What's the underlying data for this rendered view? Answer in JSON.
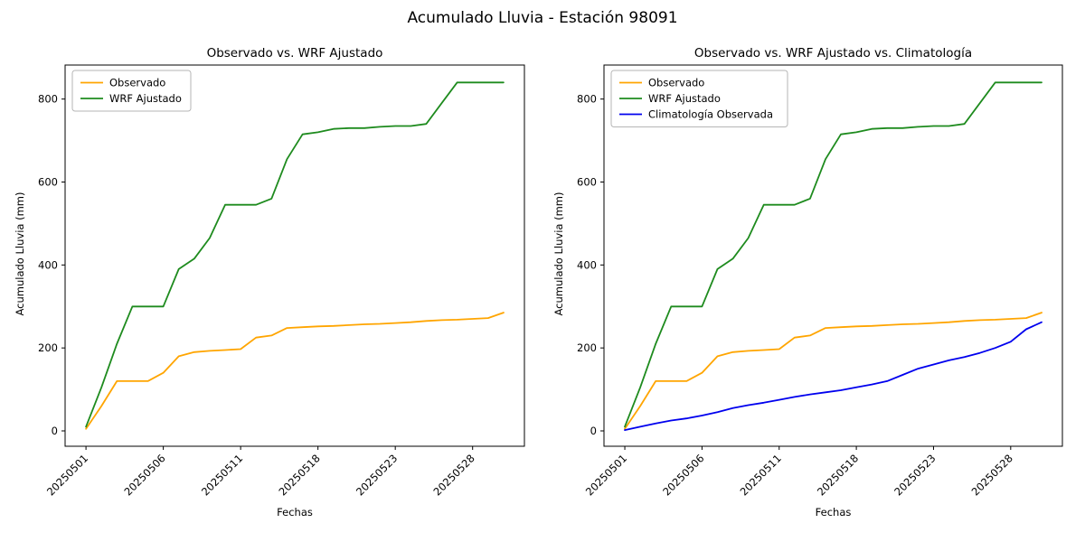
{
  "figure": {
    "title": "Acumulado Lluvia - Estación 98091"
  },
  "chart_data": [
    {
      "type": "line",
      "title": "Observado vs. WRF Ajustado",
      "xlabel": "Fechas",
      "ylabel": "Acumulado Lluvia (mm)",
      "ylim": [
        -37,
        882
      ],
      "yticks": [
        0,
        200,
        400,
        600,
        800
      ],
      "legend_position": "upper-left",
      "grid": false,
      "x": [
        "20250501",
        "20250502",
        "20250503",
        "20250504",
        "20250505",
        "20250506",
        "20250507",
        "20250508",
        "20250509",
        "20250510",
        "20250511",
        "20250512",
        "20250513",
        "20250515",
        "20250516",
        "20250518",
        "20250519",
        "20250520",
        "20250521",
        "20250522",
        "20250523",
        "20250524",
        "20250525",
        "20250526",
        "20250527",
        "20250528",
        "20250529",
        "20250530"
      ],
      "xtick_indices": [
        0,
        5,
        10,
        15,
        20,
        25
      ],
      "series": [
        {
          "name": "Observado",
          "color": "#FFA500",
          "values": [
            5,
            60,
            120,
            120,
            120,
            140,
            180,
            190,
            193,
            195,
            197,
            225,
            230,
            248,
            250,
            252,
            253,
            255,
            257,
            258,
            260,
            262,
            265,
            267,
            268,
            270,
            272,
            285
          ]
        },
        {
          "name": "WRF Ajustado",
          "color": "#1E8B1E",
          "values": [
            10,
            105,
            210,
            300,
            300,
            300,
            390,
            415,
            465,
            545,
            545,
            545,
            560,
            655,
            715,
            720,
            728,
            730,
            730,
            733,
            735,
            735,
            740,
            790,
            840,
            840,
            840,
            840
          ]
        }
      ]
    },
    {
      "type": "line",
      "title": "Observado vs. WRF Ajustado vs. Climatología",
      "xlabel": "Fechas",
      "ylabel": "Acumulado Lluvia (mm)",
      "ylim": [
        -37,
        882
      ],
      "yticks": [
        0,
        200,
        400,
        600,
        800
      ],
      "legend_position": "upper-left",
      "grid": false,
      "x": [
        "20250501",
        "20250502",
        "20250503",
        "20250504",
        "20250505",
        "20250506",
        "20250507",
        "20250508",
        "20250509",
        "20250510",
        "20250511",
        "20250512",
        "20250513",
        "20250515",
        "20250516",
        "20250518",
        "20250519",
        "20250520",
        "20250521",
        "20250522",
        "20250523",
        "20250524",
        "20250525",
        "20250526",
        "20250527",
        "20250528",
        "20250529",
        "20250530"
      ],
      "xtick_indices": [
        0,
        5,
        10,
        15,
        20,
        25
      ],
      "series": [
        {
          "name": "Observado",
          "color": "#FFA500",
          "values": [
            5,
            60,
            120,
            120,
            120,
            140,
            180,
            190,
            193,
            195,
            197,
            225,
            230,
            248,
            250,
            252,
            253,
            255,
            257,
            258,
            260,
            262,
            265,
            267,
            268,
            270,
            272,
            285
          ]
        },
        {
          "name": "WRF Ajustado",
          "color": "#1E8B1E",
          "values": [
            10,
            105,
            210,
            300,
            300,
            300,
            390,
            415,
            465,
            545,
            545,
            545,
            560,
            655,
            715,
            720,
            728,
            730,
            730,
            733,
            735,
            735,
            740,
            790,
            840,
            840,
            840,
            840
          ]
        },
        {
          "name": "Climatología Observada",
          "color": "#0000EE",
          "values": [
            2,
            10,
            18,
            25,
            30,
            37,
            45,
            55,
            62,
            68,
            75,
            82,
            88,
            93,
            98,
            105,
            112,
            120,
            135,
            150,
            160,
            170,
            178,
            188,
            200,
            215,
            245,
            262
          ]
        }
      ]
    }
  ]
}
